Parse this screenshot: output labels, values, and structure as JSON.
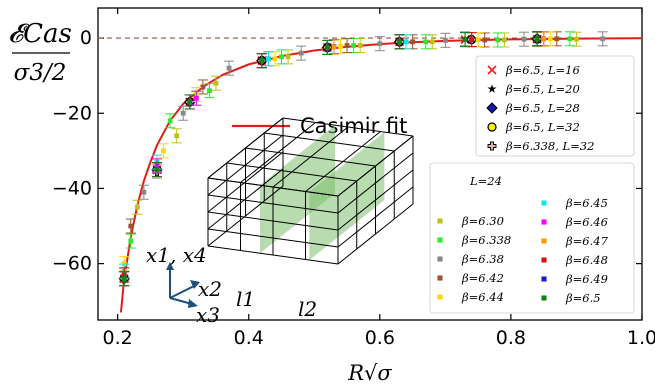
{
  "chart_data": {
    "type": "scatter",
    "xlabel": "R√σ",
    "ylabel_top": "𝓔Cas",
    "ylabel_bottom": "σ3/2",
    "xlim": [
      0.17,
      1.0
    ],
    "ylim": [
      -75,
      8
    ],
    "xticks": [
      "0.2",
      "0.4",
      "0.6",
      "0.8",
      "1.0"
    ],
    "yticks": [
      "0",
      "−20",
      "−40",
      "−60"
    ],
    "fit": {
      "name": "Casimir fit",
      "points": [
        [
          0.205,
          -73
        ],
        [
          0.21,
          -64
        ],
        [
          0.22,
          -53
        ],
        [
          0.23,
          -44.5
        ],
        [
          0.24,
          -38
        ],
        [
          0.25,
          -33
        ],
        [
          0.26,
          -28.5
        ],
        [
          0.28,
          -22
        ],
        [
          0.3,
          -17.5
        ],
        [
          0.33,
          -13
        ],
        [
          0.36,
          -9.8
        ],
        [
          0.4,
          -7
        ],
        [
          0.45,
          -4.8
        ],
        [
          0.5,
          -3.3
        ],
        [
          0.55,
          -2.3
        ],
        [
          0.6,
          -1.6
        ],
        [
          0.65,
          -1.1
        ],
        [
          0.7,
          -0.75
        ],
        [
          0.8,
          -0.35
        ],
        [
          0.9,
          -0.15
        ],
        [
          1.0,
          -0.05
        ]
      ]
    },
    "series": [
      {
        "name": "β=6.5, L=16",
        "marker": "x",
        "color": "#ff1a1a",
        "x": [
          0.21,
          0.26,
          0.31,
          0.42,
          0.52,
          0.63,
          0.73,
          0.84
        ],
        "y": [
          -64,
          -35,
          -17,
          -6,
          -2.5,
          -1,
          -0.4,
          -0.3
        ]
      },
      {
        "name": "β=6.5, L=20",
        "marker": "star",
        "color": "#000000",
        "x": [
          0.21,
          0.26,
          0.31,
          0.42,
          0.52,
          0.63,
          0.73,
          0.84
        ],
        "y": [
          -64,
          -35,
          -17,
          -6,
          -2.5,
          -1,
          -0.3,
          -0.2
        ]
      },
      {
        "name": "β=6.5, L=28",
        "marker": "diamond",
        "color": "#1a1aaa",
        "x": [
          0.21,
          0.26,
          0.31,
          0.42,
          0.52,
          0.63,
          0.74,
          0.84
        ],
        "y": [
          -64,
          -35,
          -17,
          -6,
          -2.5,
          -1,
          -0.4,
          -0.2
        ]
      },
      {
        "name": "β=6.5, L=32",
        "marker": "circle",
        "color": "#ffee00",
        "x": [
          0.21,
          0.26,
          0.31,
          0.42,
          0.52,
          0.63,
          0.74,
          0.84
        ],
        "y": [
          -64,
          -35,
          -17,
          -6,
          -2.5,
          -1,
          -0.4,
          -0.3
        ]
      },
      {
        "name": "β=6.338, L=32",
        "marker": "plus",
        "color": "#d8b9b0",
        "x": [
          0.21,
          0.26,
          0.31,
          0.42,
          0.52,
          0.63,
          0.74,
          0.84
        ],
        "y": [
          -64,
          -35.5,
          -17,
          -6,
          -2.5,
          -1,
          -0.4,
          -0.2
        ]
      },
      {
        "name": "β=6.30",
        "marker": "square",
        "color": "#bdc21a",
        "x": [
          0.23,
          0.29,
          0.35,
          0.46,
          0.57,
          0.68,
          0.79,
          0.9
        ],
        "y": [
          -45,
          -26,
          -12,
          -5,
          -2,
          -1,
          -0.5,
          -0.3
        ]
      },
      {
        "name": "β=6.338",
        "marker": "square",
        "color": "#2ee82e",
        "x": [
          0.22,
          0.28,
          0.34,
          0.45,
          0.56,
          0.67,
          0.78,
          0.89
        ],
        "y": [
          -54,
          -22,
          -14,
          -5,
          -2,
          -1,
          -0.5,
          -0.2
        ]
      },
      {
        "name": "β=6.38",
        "marker": "square",
        "color": "#888888",
        "x": [
          0.24,
          0.3,
          0.37,
          0.48,
          0.6,
          0.7,
          0.82,
          0.94
        ],
        "y": [
          -41,
          -20,
          -8,
          -4,
          -1.5,
          -0.6,
          -0.3,
          -0.2
        ]
      },
      {
        "name": "β=6.42",
        "marker": "square",
        "color": "#a0522d",
        "x": [
          0.22,
          0.26,
          0.33,
          0.43,
          0.55,
          0.65,
          0.76,
          0.87
        ],
        "y": [
          -50,
          -35,
          -13,
          -5.5,
          -2,
          -1,
          -0.5,
          -0.2
        ]
      },
      {
        "name": "β=6.44",
        "marker": "square",
        "color": "#ffd700",
        "x": [
          0.21,
          0.27,
          0.32,
          0.44,
          0.54,
          0.64,
          0.75,
          0.86
        ],
        "y": [
          -60,
          -30,
          -15,
          -5.5,
          -2.2,
          -1,
          -0.4,
          -0.2
        ]
      },
      {
        "name": "β=6.45",
        "marker": "square",
        "color": "#11e8e8",
        "x": [
          0.21,
          0.26,
          0.32,
          0.43,
          0.53,
          0.64,
          0.74,
          0.85
        ],
        "y": [
          -62,
          -33,
          -16,
          -5.5,
          -2.2,
          -1,
          -0.4,
          -0.2
        ]
      },
      {
        "name": "β=6.46",
        "marker": "square",
        "color": "#ff00ff",
        "x": [
          0.21,
          0.26,
          0.32,
          0.42,
          0.53,
          0.63,
          0.74,
          0.85
        ],
        "y": [
          -63,
          -34,
          -16,
          -6,
          -2.3,
          -1,
          -0.4,
          -0.2
        ]
      },
      {
        "name": "β=6.47",
        "marker": "square",
        "color": "#ff9900",
        "x": [
          0.21,
          0.26,
          0.31,
          0.42,
          0.53,
          0.63,
          0.74,
          0.85
        ],
        "y": [
          -63,
          -35,
          -17,
          -6,
          -2.4,
          -1,
          -0.4,
          -0.3
        ]
      },
      {
        "name": "β=6.48",
        "marker": "square",
        "color": "#dd1111",
        "x": [
          0.21,
          0.26,
          0.31,
          0.42,
          0.52,
          0.63,
          0.74,
          0.84
        ],
        "y": [
          -63,
          -35,
          -17,
          -6,
          -2.5,
          -1,
          -0.4,
          -0.2
        ]
      },
      {
        "name": "β=6.49",
        "marker": "square",
        "color": "#1a1add",
        "x": [
          0.21,
          0.26,
          0.31,
          0.42,
          0.52,
          0.63,
          0.73,
          0.84
        ],
        "y": [
          -64,
          -35,
          -17,
          -6,
          -2.5,
          -1,
          -0.4,
          -0.2
        ]
      },
      {
        "name": "β=6.5",
        "marker": "square",
        "color": "#118811",
        "x": [
          0.21,
          0.26,
          0.31,
          0.42,
          0.52,
          0.63,
          0.73,
          0.84
        ],
        "y": [
          -64,
          -35,
          -17,
          -6,
          -2.5,
          -1,
          -0.4,
          -0.2
        ]
      }
    ],
    "legend_box_title": "L=24",
    "inset_labels": {
      "ax1": "x1, x4",
      "ax2": "x2",
      "ax3": "x3",
      "plate1": "l1",
      "plate2": "l2"
    }
  }
}
